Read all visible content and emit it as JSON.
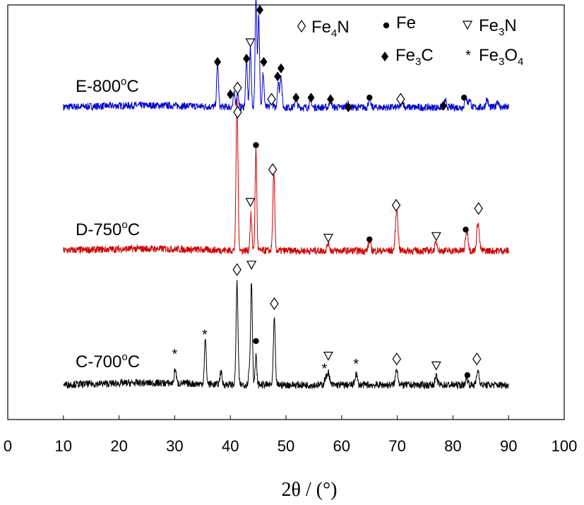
{
  "chart_data": {
    "type": "line",
    "xlabel": "2θ / (°)",
    "xlim": [
      0,
      100
    ],
    "x_ticks": [
      "0",
      "10",
      "20",
      "30",
      "40",
      "50",
      "60",
      "70",
      "80",
      "90",
      "100"
    ],
    "y_ticks": [],
    "grid": false,
    "legend_position": "top-right",
    "legend": [
      {
        "symbol": "diamond-open",
        "base": "Fe",
        "sub": "4",
        "rest": "N"
      },
      {
        "symbol": "circle",
        "base": "Fe",
        "sub": "",
        "rest": ""
      },
      {
        "symbol": "triangle-down-open",
        "base": "Fe",
        "sub": "3",
        "rest": "N"
      },
      {
        "symbol": "diamond",
        "base": "Fe",
        "sub": "3",
        "rest": "C"
      },
      {
        "symbol": "asterisk",
        "base": "Fe",
        "sub": "3",
        "rest": "O",
        "sub2": "4"
      }
    ],
    "series": [
      {
        "name": "E-800°C",
        "label_base": "E-800",
        "label_sup": "o",
        "label_unit": "C",
        "color": "#0000cc",
        "offset": 2.0,
        "peaks": [
          {
            "x": 37.7,
            "h": 0.26,
            "w": 0.16
          },
          {
            "x": 40.7,
            "h": 0.08,
            "w": 0.16
          },
          {
            "x": 41.3,
            "h": 0.09,
            "w": 0.16
          },
          {
            "x": 42.9,
            "h": 0.29,
            "w": 0.16
          },
          {
            "x": 43.6,
            "h": 0.37,
            "w": 0.15
          },
          {
            "x": 44.6,
            "h": 0.7,
            "w": 0.15
          },
          {
            "x": 45.1,
            "h": 0.57,
            "w": 0.15
          },
          {
            "x": 45.9,
            "h": 0.21,
            "w": 0.15
          },
          {
            "x": 47.4,
            "h": 0.05,
            "w": 0.16
          },
          {
            "x": 48.6,
            "h": 0.16,
            "w": 0.16
          },
          {
            "x": 49.1,
            "h": 0.2,
            "w": 0.16
          },
          {
            "x": 51.8,
            "h": 0.07,
            "w": 0.17
          },
          {
            "x": 54.4,
            "h": 0.06,
            "w": 0.17
          },
          {
            "x": 58.0,
            "h": 0.06,
            "w": 0.17
          },
          {
            "x": 61.0,
            "h": 0.03,
            "w": 0.18
          },
          {
            "x": 65.0,
            "h": 0.06,
            "w": 0.18
          },
          {
            "x": 70.9,
            "h": 0.04,
            "w": 0.2
          },
          {
            "x": 78.6,
            "h": 0.04,
            "w": 0.2
          },
          {
            "x": 82.3,
            "h": 0.07,
            "w": 0.2
          },
          {
            "x": 83.0,
            "h": 0.05,
            "w": 0.2
          },
          {
            "x": 86.1,
            "h": 0.05,
            "w": 0.2
          },
          {
            "x": 88.0,
            "h": 0.04,
            "w": 0.2
          }
        ]
      },
      {
        "name": "D-750°C",
        "label_base": "D-750",
        "label_sup": "o",
        "label_unit": "C",
        "color": "#cc0000",
        "offset": 1.0,
        "peaks": [
          {
            "x": 41.2,
            "h": 0.95,
            "w": 0.17
          },
          {
            "x": 43.7,
            "h": 0.22,
            "w": 0.16
          },
          {
            "x": 44.6,
            "h": 0.63,
            "w": 0.15
          },
          {
            "x": 47.8,
            "h": 0.48,
            "w": 0.17
          },
          {
            "x": 57.6,
            "h": 0.05,
            "w": 0.2
          },
          {
            "x": 65.0,
            "h": 0.06,
            "w": 0.2
          },
          {
            "x": 69.9,
            "h": 0.26,
            "w": 0.22
          },
          {
            "x": 77.0,
            "h": 0.05,
            "w": 0.22
          },
          {
            "x": 82.5,
            "h": 0.13,
            "w": 0.22
          },
          {
            "x": 84.5,
            "h": 0.18,
            "w": 0.22
          }
        ]
      },
      {
        "name": "C-700°C",
        "label_base": "C-700",
        "label_sup": "o",
        "label_unit": "C",
        "color": "#000000",
        "offset": 0.0,
        "peaks": [
          {
            "x": 30.1,
            "h": 0.09,
            "w": 0.17
          },
          {
            "x": 35.5,
            "h": 0.27,
            "w": 0.17
          },
          {
            "x": 38.3,
            "h": 0.08,
            "w": 0.17
          },
          {
            "x": 41.2,
            "h": 0.63,
            "w": 0.17
          },
          {
            "x": 43.4,
            "h": 0.08,
            "w": 0.16
          },
          {
            "x": 43.8,
            "h": 0.64,
            "w": 0.16
          },
          {
            "x": 44.6,
            "h": 0.18,
            "w": 0.15
          },
          {
            "x": 47.9,
            "h": 0.41,
            "w": 0.17
          },
          {
            "x": 57.1,
            "h": 0.04,
            "w": 0.2
          },
          {
            "x": 57.6,
            "h": 0.08,
            "w": 0.2
          },
          {
            "x": 62.6,
            "h": 0.07,
            "w": 0.2
          },
          {
            "x": 69.9,
            "h": 0.1,
            "w": 0.22
          },
          {
            "x": 77.0,
            "h": 0.05,
            "w": 0.22
          },
          {
            "x": 82.5,
            "h": 0.04,
            "w": 0.22
          },
          {
            "x": 84.5,
            "h": 0.09,
            "w": 0.22
          }
        ]
      }
    ],
    "markers": [
      {
        "x": 37.7,
        "y": 2.28,
        "symbol": "diamond"
      },
      {
        "x": 40.0,
        "y": 2.08,
        "symbol": "diamond"
      },
      {
        "x": 41.3,
        "y": 2.12,
        "symbol": "diamond-open"
      },
      {
        "x": 42.9,
        "y": 2.3,
        "symbol": "diamond"
      },
      {
        "x": 43.6,
        "y": 2.4,
        "symbol": "triangle-down-open"
      },
      {
        "x": 44.6,
        "y": 2.73,
        "symbol": "circle"
      },
      {
        "x": 45.3,
        "y": 2.6,
        "symbol": "diamond"
      },
      {
        "x": 46.0,
        "y": 2.28,
        "symbol": "diamond"
      },
      {
        "x": 47.4,
        "y": 2.05,
        "symbol": "diamond-open"
      },
      {
        "x": 48.5,
        "y": 2.19,
        "symbol": "diamond"
      },
      {
        "x": 49.1,
        "y": 2.24,
        "symbol": "diamond"
      },
      {
        "x": 51.8,
        "y": 2.06,
        "symbol": "diamond"
      },
      {
        "x": 54.5,
        "y": 2.06,
        "symbol": "diamond"
      },
      {
        "x": 58.0,
        "y": 2.05,
        "symbol": "diamond"
      },
      {
        "x": 61.2,
        "y": 2.0,
        "symbol": "diamond"
      },
      {
        "x": 65.0,
        "y": 2.06,
        "symbol": "circle"
      },
      {
        "x": 70.6,
        "y": 2.05,
        "symbol": "diamond-open"
      },
      {
        "x": 78.3,
        "y": 2.01,
        "symbol": "diamond"
      },
      {
        "x": 82.0,
        "y": 2.06,
        "symbol": "circle"
      },
      {
        "x": 41.3,
        "y": 1.97,
        "symbol": "diamond-open"
      },
      {
        "x": 44.6,
        "y": 1.65,
        "symbol": "circle"
      },
      {
        "x": 43.6,
        "y": 1.3,
        "symbol": "triangle-down-open"
      },
      {
        "x": 47.6,
        "y": 1.5,
        "symbol": "diamond-open"
      },
      {
        "x": 57.6,
        "y": 1.08,
        "symbol": "triangle-down-open"
      },
      {
        "x": 65.0,
        "y": 1.07,
        "symbol": "circle"
      },
      {
        "x": 69.8,
        "y": 1.28,
        "symbol": "diamond-open"
      },
      {
        "x": 77.0,
        "y": 1.09,
        "symbol": "triangle-down-open"
      },
      {
        "x": 82.3,
        "y": 1.13,
        "symbol": "circle"
      },
      {
        "x": 84.6,
        "y": 1.26,
        "symbol": "diamond-open"
      },
      {
        "x": 30.0,
        "y": 0.2,
        "symbol": "asterisk"
      },
      {
        "x": 35.4,
        "y": 0.32,
        "symbol": "asterisk"
      },
      {
        "x": 41.2,
        "y": 0.71,
        "symbol": "diamond-open"
      },
      {
        "x": 43.8,
        "y": 0.74,
        "symbol": "triangle-down-open"
      },
      {
        "x": 44.6,
        "y": 0.27,
        "symbol": "circle"
      },
      {
        "x": 47.9,
        "y": 0.5,
        "symbol": "diamond-open"
      },
      {
        "x": 56.9,
        "y": 0.11,
        "symbol": "asterisk"
      },
      {
        "x": 57.6,
        "y": 0.18,
        "symbol": "triangle-down-open"
      },
      {
        "x": 62.6,
        "y": 0.14,
        "symbol": "asterisk"
      },
      {
        "x": 69.9,
        "y": 0.16,
        "symbol": "diamond-open"
      },
      {
        "x": 77.0,
        "y": 0.12,
        "symbol": "triangle-down-open"
      },
      {
        "x": 82.6,
        "y": 0.06,
        "symbol": "circle"
      },
      {
        "x": 84.3,
        "y": 0.16,
        "symbol": "diamond-open"
      }
    ]
  }
}
